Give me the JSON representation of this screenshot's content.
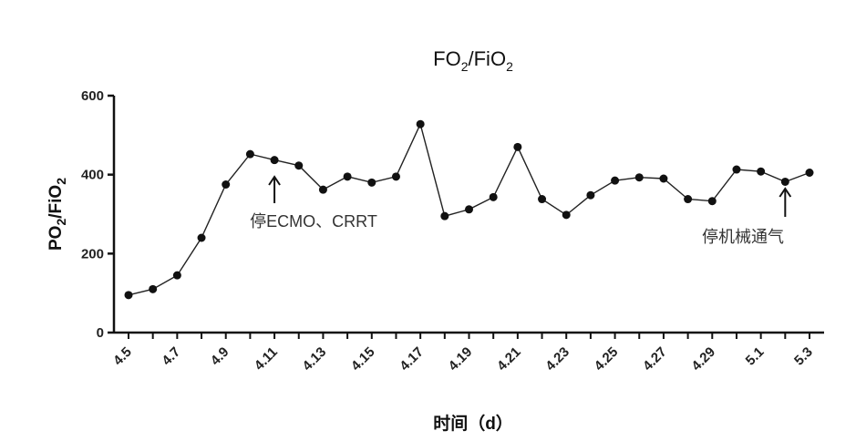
{
  "chart_data": {
    "type": "line",
    "title": "FO2/FiO2",
    "xlabel": "时间（d）",
    "ylabel": "PO2/FiO2",
    "ylim": [
      0,
      600
    ],
    "yticks": [
      0,
      200,
      400,
      600
    ],
    "x": [
      "4.5",
      "4.6",
      "4.7",
      "4.8",
      "4.9",
      "4.10",
      "4.11",
      "4.12",
      "4.13",
      "4.14",
      "4.15",
      "4.16",
      "4.17",
      "4.18",
      "4.19",
      "4.20",
      "4.21",
      "4.22",
      "4.23",
      "4.24",
      "4.25",
      "4.26",
      "4.27",
      "4.28",
      "4.29",
      "4.30",
      "5.1",
      "5.2",
      "5.3"
    ],
    "xtick_labels": [
      "4.5",
      "4.7",
      "4.9",
      "4.11",
      "4.13",
      "4.15",
      "4.17",
      "4.19",
      "4.21",
      "4.23",
      "4.25",
      "4.27",
      "4.29",
      "5.1",
      "5.3"
    ],
    "series": [
      {
        "values": [
          95,
          110,
          145,
          240,
          375,
          452,
          437,
          423,
          362,
          395,
          380,
          395,
          528,
          295,
          312,
          343,
          470,
          338,
          298,
          348,
          385,
          393,
          390,
          338,
          333,
          413,
          408,
          382,
          405
        ]
      }
    ],
    "annotations": [
      {
        "text": "停ECMO、CRRT",
        "x": "4.11"
      },
      {
        "text": "停机械通气",
        "x": "5.2"
      }
    ],
    "colors": {
      "line": "#222222",
      "marker": "#111111",
      "axis": "#111111"
    },
    "grid": false,
    "legend": "none"
  }
}
